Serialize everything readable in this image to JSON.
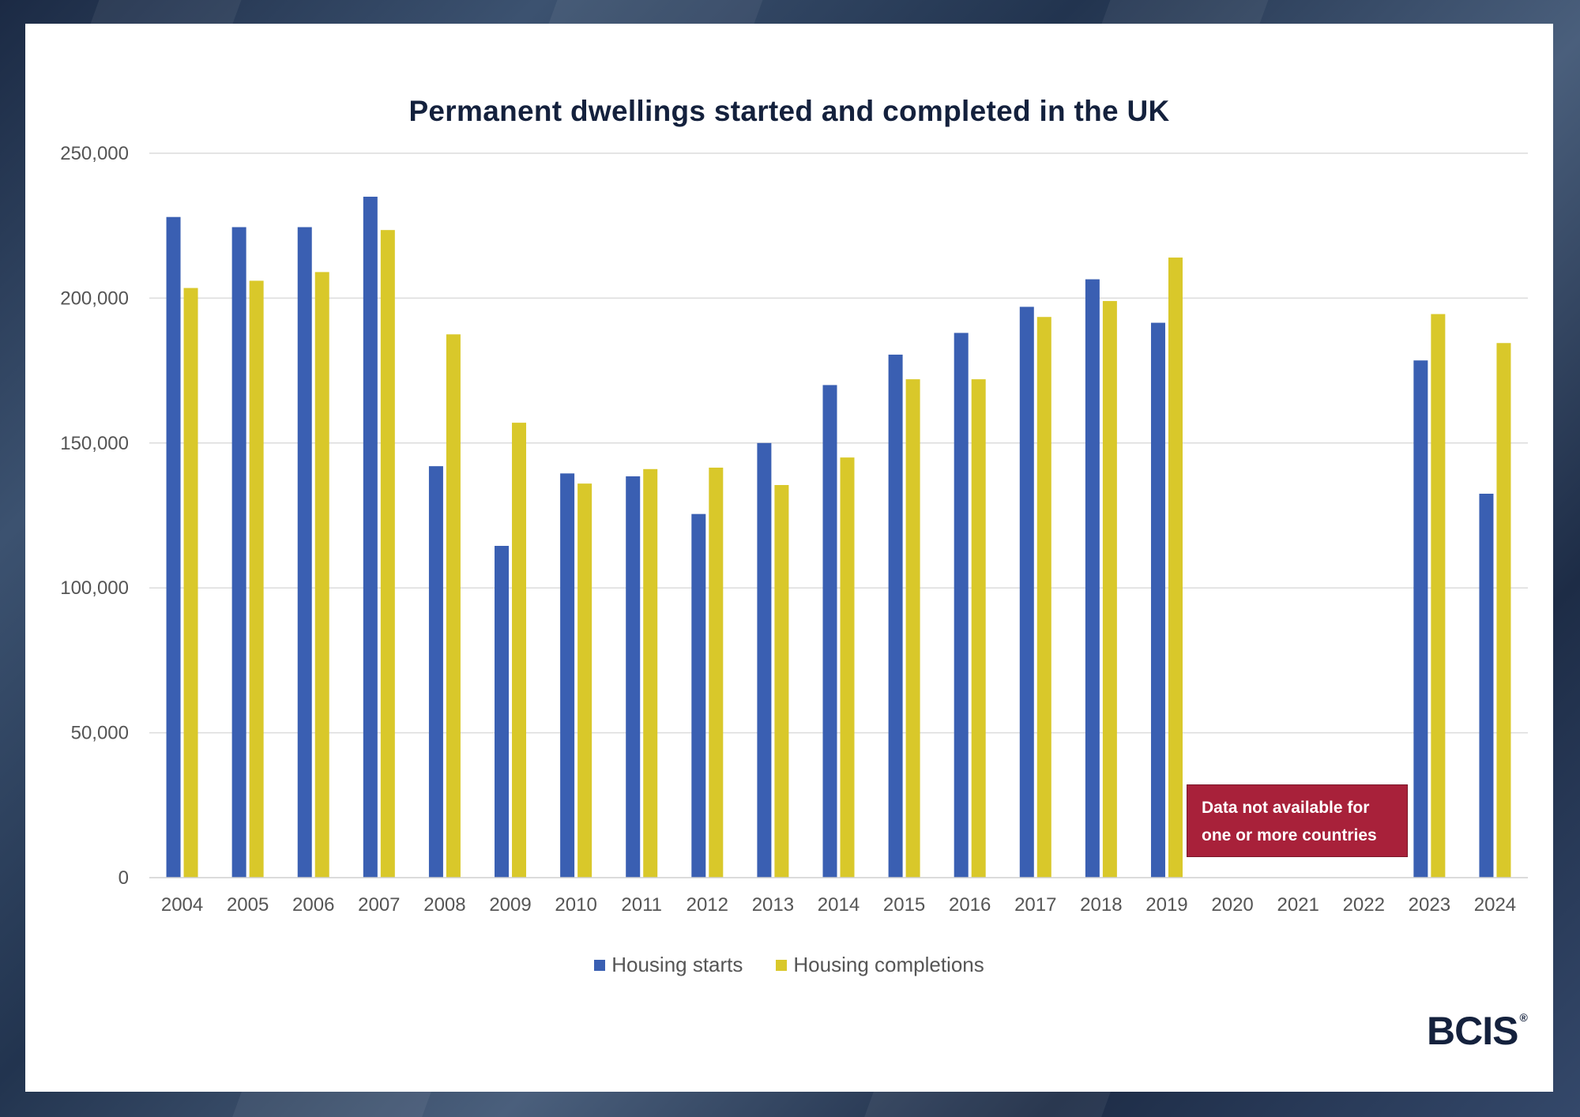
{
  "chart_data": {
    "type": "bar",
    "title": "Permanent dwellings started and completed in the UK",
    "xlabel": "",
    "ylabel": "",
    "ylim": [
      0,
      250000
    ],
    "yticks": [
      0,
      50000,
      100000,
      150000,
      200000,
      250000
    ],
    "ytick_labels": [
      "0",
      "50,000",
      "100,000",
      "150,000",
      "200,000",
      "250,000"
    ],
    "categories": [
      "2004",
      "2005",
      "2006",
      "2007",
      "2008",
      "2009",
      "2010",
      "2011",
      "2012",
      "2013",
      "2014",
      "2015",
      "2016",
      "2017",
      "2018",
      "2019",
      "2020",
      "2021",
      "2022",
      "2023",
      "2024"
    ],
    "series": [
      {
        "name": "Housing starts",
        "color": "#3a5fb2",
        "values": [
          228000,
          224500,
          224500,
          235000,
          142000,
          114500,
          139500,
          138500,
          125500,
          150000,
          170000,
          180500,
          188000,
          197000,
          206500,
          191500,
          null,
          null,
          null,
          178500,
          132500
        ]
      },
      {
        "name": "Housing completions",
        "color": "#d9c82a",
        "values": [
          203500,
          206000,
          209000,
          223500,
          187500,
          157000,
          136000,
          141000,
          141500,
          135500,
          145000,
          172000,
          172000,
          193500,
          199000,
          214000,
          null,
          null,
          null,
          194500,
          184500
        ]
      }
    ],
    "grid": true,
    "legend_position": "bottom-center",
    "annotation": "Data not available for one or more countries"
  },
  "note": {
    "line1": "Data not available for",
    "line2": "one or more countries"
  },
  "logo": {
    "text": "BCIS",
    "mark": "®"
  }
}
